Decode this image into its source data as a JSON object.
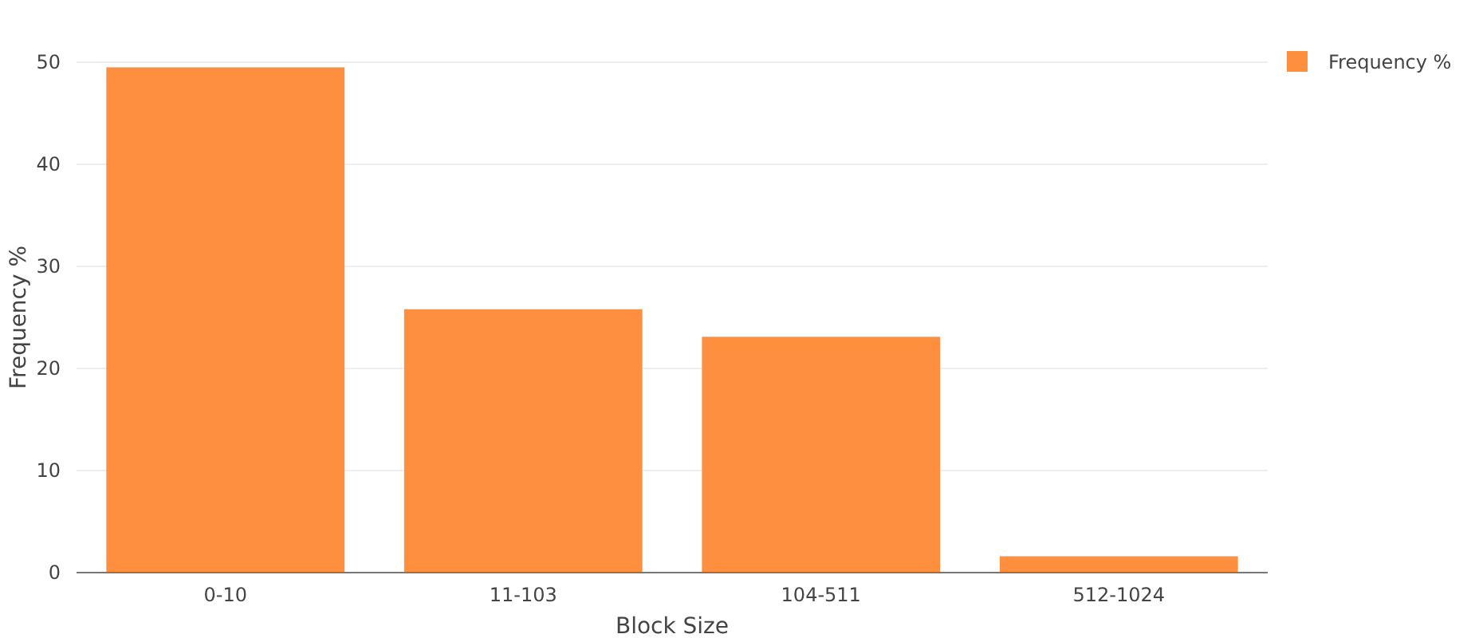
{
  "chart_data": {
    "type": "bar",
    "xlabel": "Block Size",
    "ylabel": "Frequency %",
    "categories": [
      "0-10",
      "11-103",
      "104-511",
      "512-1024"
    ],
    "series": [
      {
        "name": "Frequency %",
        "color": "#fd8f3f",
        "values": [
          49.5,
          25.8,
          23.1,
          1.6
        ]
      }
    ],
    "ylim": [
      0,
      50
    ],
    "yticks": [
      0,
      10,
      20,
      30,
      40,
      50
    ],
    "grid": "y",
    "legend": "right"
  }
}
